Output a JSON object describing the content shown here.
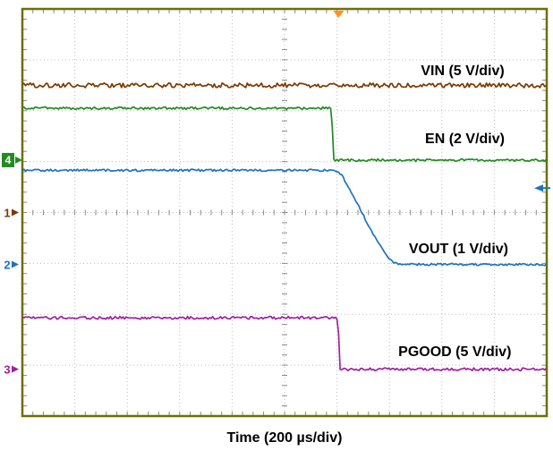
{
  "page": {
    "background": "#ffffff"
  },
  "chart_data": {
    "type": "line",
    "title": "",
    "xlabel": "Time (200 µs/div)",
    "ylabel": "",
    "x_divisions": 10,
    "y_divisions": 8,
    "grid": true,
    "time_per_div": "200 µs",
    "colors": {
      "frame": "#6e6e00",
      "grid": "#bdbdbd",
      "tick": "#8a8a8a",
      "label": "#000000"
    },
    "series": [
      {
        "id": "vin",
        "name": "VIN (5 V/div)",
        "channel": 1,
        "volts_per_div": 5,
        "color": "#7a3a00",
        "noise": 2.6,
        "points": [
          [
            0,
            1.5
          ],
          [
            10,
            1.5
          ]
        ],
        "label_pos": [
          7.6,
          1.3
        ]
      },
      {
        "id": "en",
        "name": "EN (2 V/div)",
        "channel": 4,
        "volts_per_div": 2,
        "color": "#228B22",
        "noise": 1.4,
        "points": [
          [
            0,
            1.95
          ],
          [
            5.9,
            1.95
          ],
          [
            5.93,
            2.97
          ],
          [
            10,
            2.97
          ]
        ],
        "label_pos": [
          7.68,
          2.64
        ]
      },
      {
        "id": "vout",
        "name": "VOUT (1 V/div)",
        "channel": 2,
        "volts_per_div": 1,
        "color": "#1e73be",
        "noise": 1.2,
        "points": [
          [
            0,
            3.17
          ],
          [
            5.98,
            3.17
          ],
          [
            6.1,
            3.28
          ],
          [
            6.4,
            3.85
          ],
          [
            6.7,
            4.45
          ],
          [
            6.95,
            4.85
          ],
          [
            7.1,
            5.0
          ],
          [
            7.2,
            5.02
          ],
          [
            10,
            5.02
          ]
        ],
        "label_pos": [
          7.37,
          4.8
        ]
      },
      {
        "id": "pgood",
        "name": "PGOOD (5 V/div)",
        "channel": 3,
        "volts_per_div": 5,
        "color": "#a020a0",
        "noise": 1.6,
        "points": [
          [
            0,
            6.07
          ],
          [
            6.02,
            6.07
          ],
          [
            6.05,
            7.08
          ],
          [
            10,
            7.08
          ]
        ],
        "label_pos": [
          7.17,
          6.82
        ]
      }
    ],
    "markers": {
      "left": [
        {
          "label": "4",
          "color": "#228B22",
          "y": 2.97,
          "filled": true
        },
        {
          "label": "1",
          "color": "#7a3a00",
          "y": 4.0,
          "filled": false
        },
        {
          "label": "2",
          "color": "#1e73be",
          "y": 5.02,
          "filled": false
        },
        {
          "label": "3",
          "color": "#a020a0",
          "y": 7.08,
          "filled": false
        }
      ],
      "trigger_top": {
        "x": 6.03,
        "color": "#ff9021"
      },
      "right_arrow": {
        "y": 3.52,
        "color": "#1e73be"
      }
    }
  }
}
